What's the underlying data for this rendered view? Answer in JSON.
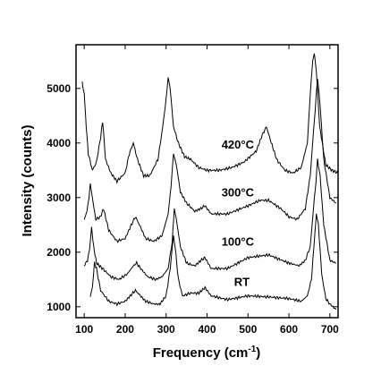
{
  "chart_data": {
    "type": "line",
    "xlabel": "Frequency (cm",
    "xlabel_sup": "-1",
    "xlabel_close": ")",
    "ylabel": "Intensity (counts)",
    "xlim": [
      80,
      720
    ],
    "ylim": [
      800,
      5800
    ],
    "x_ticks": [
      "100",
      "200",
      "300",
      "400",
      "500",
      "600",
      "700"
    ],
    "y_ticks": [
      "1000",
      "2000",
      "3000",
      "4000",
      "5000"
    ],
    "grid": false,
    "series": [
      {
        "name": "RT",
        "x": [
          115,
          120,
          125,
          130,
          140,
          160,
          180,
          200,
          215,
          225,
          235,
          250,
          270,
          285,
          300,
          310,
          318,
          322,
          330,
          340,
          360,
          380,
          395,
          410,
          450,
          500,
          550,
          600,
          630,
          645,
          655,
          662,
          667,
          672,
          680,
          690,
          700,
          715
        ],
        "y": [
          1200,
          1350,
          1800,
          1700,
          1300,
          1100,
          1050,
          1100,
          1220,
          1300,
          1220,
          1100,
          1050,
          1050,
          1200,
          1700,
          2300,
          2100,
          1500,
          1200,
          1250,
          1250,
          1350,
          1200,
          1130,
          1200,
          1180,
          1150,
          1100,
          1200,
          1500,
          2200,
          2700,
          2500,
          1600,
          1150,
          1050,
          950
        ]
      },
      {
        "name": "100°C",
        "x": [
          100,
          108,
          113,
          118,
          123,
          130,
          145,
          165,
          185,
          205,
          220,
          228,
          238,
          255,
          275,
          290,
          305,
          315,
          320,
          325,
          335,
          350,
          370,
          385,
          395,
          410,
          450,
          500,
          550,
          600,
          625,
          640,
          652,
          660,
          666,
          670,
          676,
          685,
          700,
          715
        ],
        "y": [
          1750,
          1850,
          2050,
          2450,
          2100,
          1800,
          1700,
          1550,
          1500,
          1600,
          1750,
          1800,
          1700,
          1550,
          1500,
          1550,
          1700,
          2200,
          2800,
          2600,
          2100,
          1800,
          1750,
          1850,
          1900,
          1700,
          1700,
          1900,
          1950,
          1800,
          1750,
          1850,
          2100,
          2800,
          3300,
          3700,
          3400,
          2500,
          1850,
          1800
        ]
      },
      {
        "name": "300°C",
        "x": [
          100,
          105,
          110,
          115,
          120,
          128,
          140,
          147,
          160,
          180,
          200,
          215,
          225,
          235,
          250,
          270,
          290,
          305,
          312,
          318,
          325,
          335,
          350,
          370,
          385,
          395,
          410,
          450,
          500,
          530,
          550,
          580,
          600,
          620,
          640,
          652,
          660,
          666,
          670,
          676,
          685,
          700,
          715
        ],
        "y": [
          2600,
          2700,
          2900,
          3250,
          3000,
          2600,
          2650,
          2800,
          2400,
          2200,
          2250,
          2500,
          2650,
          2500,
          2250,
          2200,
          2300,
          2700,
          3200,
          3800,
          3600,
          3100,
          2900,
          2750,
          2800,
          2850,
          2700,
          2700,
          2850,
          2950,
          2950,
          2800,
          2650,
          2600,
          2800,
          3400,
          4200,
          4800,
          5200,
          4700,
          3700,
          3000,
          2900
        ]
      },
      {
        "name": "420°C",
        "x": [
          95,
          100,
          105,
          110,
          120,
          130,
          140,
          145,
          152,
          165,
          180,
          200,
          210,
          220,
          230,
          245,
          260,
          280,
          290,
          300,
          305,
          310,
          318,
          330,
          345,
          360,
          380,
          400,
          430,
          460,
          490,
          520,
          535,
          545,
          555,
          570,
          590,
          610,
          630,
          645,
          652,
          658,
          662,
          667,
          675,
          690,
          705,
          720
        ],
        "y": [
          5100,
          4900,
          4300,
          3800,
          3500,
          3650,
          4100,
          4400,
          3700,
          3450,
          3300,
          3450,
          3800,
          4000,
          3700,
          3400,
          3400,
          3700,
          4200,
          4800,
          5200,
          5000,
          4300,
          4000,
          3750,
          3700,
          3550,
          3500,
          3500,
          3550,
          3650,
          3850,
          4150,
          4300,
          4050,
          3700,
          3500,
          3450,
          3550,
          4000,
          4900,
          5500,
          5650,
          5300,
          4300,
          3600,
          3500,
          3450
        ]
      }
    ],
    "labels": [
      {
        "text": "420°C",
        "x": 475,
        "y": 3900
      },
      {
        "text": "300°C",
        "x": 475,
        "y": 3020
      },
      {
        "text": "100°C",
        "x": 475,
        "y": 2120
      },
      {
        "text": "RT",
        "x": 485,
        "y": 1380
      }
    ]
  }
}
